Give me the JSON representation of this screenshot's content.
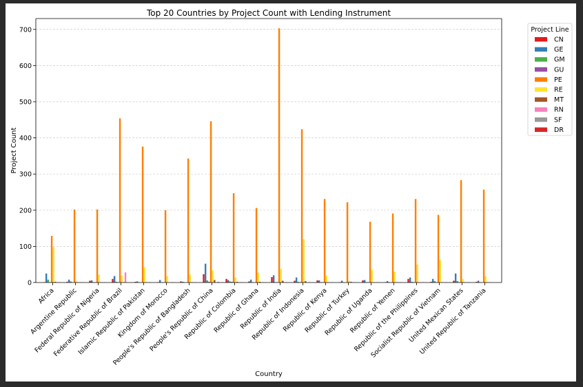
{
  "chart_data": {
    "type": "bar",
    "title": "Top 20 Countries by Project Count with Lending Instrument",
    "xlabel": "Country",
    "ylabel": "Project Count",
    "ylim": [
      0,
      730
    ],
    "yticks": [
      0,
      100,
      200,
      300,
      400,
      500,
      600,
      700
    ],
    "grid": "horizontal dashed",
    "legend": {
      "title": "Project Line",
      "placement": "outside-right"
    },
    "categories": [
      "Africa",
      "Argentine Republic",
      "Federal Republic of Nigeria",
      "Federative Republic of Brazil",
      "Islamic Republic of Pakistan",
      "Kingdom of Morocco",
      "People's Republic of Bangladesh",
      "People's Republic of China",
      "Republic of Colombia",
      "Republic of Ghana",
      "Republic of India",
      "Republic of Indonesia",
      "Republic of Kenya",
      "Republic of Turkey",
      "Republic of Uganda",
      "Republic of Yemen",
      "Republic of the Philippines",
      "Socialist Republic of Vietnam",
      "United Mexican States",
      "United Republic of Tanzania"
    ],
    "series": [
      {
        "name": "CN",
        "color": "#e41a1c",
        "values": [
          1,
          2,
          5,
          10,
          2,
          1,
          3,
          23,
          10,
          3,
          15,
          5,
          6,
          1,
          6,
          1,
          10,
          2,
          5,
          2
        ]
      },
      {
        "name": "GE",
        "color": "#377eb8",
        "values": [
          25,
          8,
          6,
          18,
          3,
          7,
          2,
          52,
          7,
          8,
          20,
          14,
          6,
          5,
          7,
          4,
          14,
          10,
          25,
          5
        ]
      },
      {
        "name": "GM",
        "color": "#4daf4a",
        "values": [
          8,
          3,
          1,
          2,
          1,
          1,
          1,
          6,
          3,
          1,
          1,
          2,
          1,
          1,
          1,
          1,
          2,
          4,
          4,
          1
        ]
      },
      {
        "name": "GU",
        "color": "#984ea3",
        "values": [
          1,
          0,
          1,
          1,
          0,
          0,
          0,
          2,
          2,
          0,
          1,
          1,
          1,
          0,
          1,
          0,
          1,
          1,
          1,
          0
        ]
      },
      {
        "name": "PE",
        "color": "#ff7f00",
        "values": [
          129,
          202,
          202,
          454,
          376,
          200,
          343,
          446,
          247,
          206,
          703,
          424,
          231,
          222,
          168,
          191,
          231,
          187,
          283,
          257
        ]
      },
      {
        "name": "RE",
        "color": "#ffe333",
        "values": [
          98,
          4,
          22,
          19,
          42,
          18,
          22,
          34,
          14,
          27,
          38,
          120,
          19,
          5,
          35,
          30,
          50,
          62,
          10,
          17
        ]
      },
      {
        "name": "MT",
        "color": "#a65628",
        "values": [
          2,
          1,
          1,
          1,
          1,
          0,
          1,
          7,
          2,
          2,
          5,
          4,
          1,
          2,
          1,
          1,
          1,
          1,
          1,
          1
        ]
      },
      {
        "name": "RN",
        "color": "#f781bf",
        "values": [
          0,
          0,
          0,
          28,
          0,
          0,
          0,
          0,
          0,
          0,
          0,
          0,
          0,
          0,
          0,
          0,
          0,
          0,
          0,
          0
        ]
      },
      {
        "name": "SF",
        "color": "#999999",
        "values": [
          1,
          1,
          1,
          1,
          1,
          1,
          1,
          2,
          1,
          1,
          1,
          1,
          1,
          1,
          1,
          1,
          1,
          1,
          1,
          1
        ]
      },
      {
        "name": "DR",
        "color": "#d62728",
        "values": [
          0,
          0,
          0,
          0,
          0,
          0,
          0,
          0,
          0,
          0,
          0,
          0,
          0,
          0,
          0,
          0,
          0,
          0,
          0,
          0
        ]
      }
    ]
  }
}
